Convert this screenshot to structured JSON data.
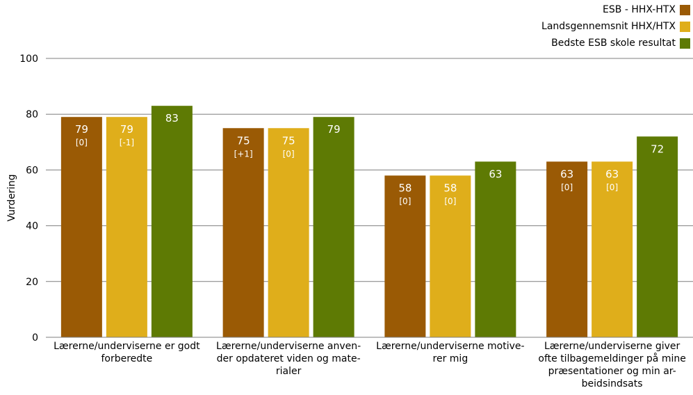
{
  "chart_data": {
    "type": "bar",
    "ylabel": "Vurdering",
    "ylim": [
      0,
      100
    ],
    "yticks": [
      "0",
      "20",
      "40",
      "60",
      "80",
      "100"
    ],
    "grid": true,
    "legend_position": "top-right",
    "categories": [
      [
        "Lærerne/underviserne er godt",
        "forberedte"
      ],
      [
        "Lærerne/underviserne anven-",
        "der opdateret viden og mate-",
        "rialer"
      ],
      [
        "Lærerne/underviserne motive-",
        "rer mig"
      ],
      [
        "Lærerne/underviserne giver",
        "ofte tilbagemeldinger på mine",
        "præsentationer og min ar-",
        "beidsindsats"
      ]
    ],
    "series": [
      {
        "name": "ESB - HHX-HTX",
        "color": "#9a5a05",
        "values": [
          79,
          75,
          58,
          63
        ],
        "value_labels": [
          "79",
          "75",
          "58",
          "63"
        ],
        "sub_labels": [
          "[0]",
          "[+1]",
          "[0]",
          "[0]"
        ]
      },
      {
        "name": "Landsgennemsnit HHX/HTX",
        "color": "#dfae1b",
        "values": [
          79,
          75,
          58,
          63
        ],
        "value_labels": [
          "79",
          "75",
          "58",
          "63"
        ],
        "sub_labels": [
          "[-1]",
          "[0]",
          "[0]",
          "[0]"
        ]
      },
      {
        "name": "Bedste ESB skole resultat",
        "color": "#5e7a04",
        "values": [
          83,
          79,
          63,
          72
        ],
        "value_labels": [
          "83",
          "79",
          "63",
          "72"
        ],
        "sub_labels": [
          "",
          "",
          "",
          ""
        ]
      }
    ]
  }
}
